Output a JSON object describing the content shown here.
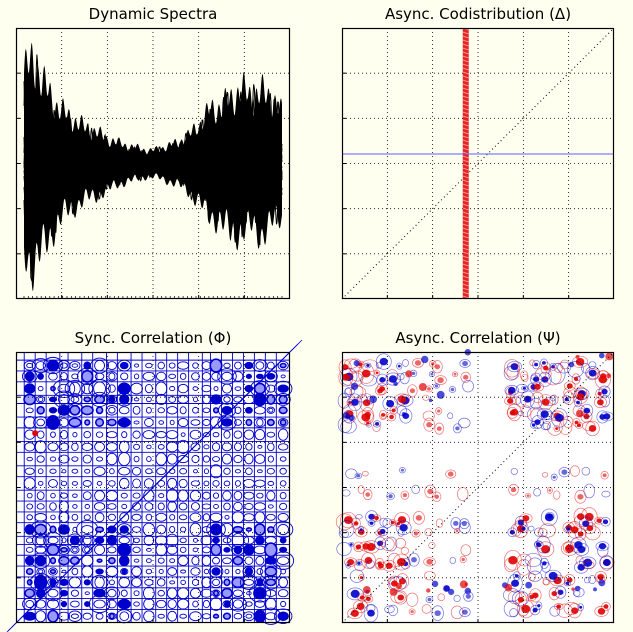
{
  "figure": {
    "background": "#fffff0"
  },
  "chart_data": [
    {
      "panel": "dynamic-spectra",
      "type": "line",
      "title": "Dynamic Spectra",
      "xlabel": "",
      "ylabel": "",
      "series_count": 14,
      "series_color": "#000000",
      "grid": true,
      "xlim": [
        0,
        1
      ],
      "ylim": [
        -1.6,
        1.6
      ],
      "envelope": {
        "x": [
          0.0,
          0.04,
          0.08,
          0.12,
          0.16,
          0.2,
          0.24,
          0.28,
          0.32,
          0.36,
          0.4,
          0.44,
          0.48,
          0.52,
          0.56,
          0.6,
          0.64,
          0.68,
          0.72,
          0.76,
          0.8,
          0.84,
          0.88,
          0.92,
          0.96,
          1.0
        ],
        "upper": [
          1.3,
          1.45,
          1.1,
          0.85,
          0.7,
          0.6,
          0.5,
          0.45,
          0.35,
          0.3,
          0.25,
          0.22,
          0.18,
          0.2,
          0.25,
          0.3,
          0.4,
          0.55,
          0.75,
          0.8,
          0.9,
          1.05,
          0.95,
          1.0,
          0.95,
          0.7
        ],
        "lower": [
          -1.2,
          -1.5,
          -1.15,
          -0.9,
          -0.7,
          -0.6,
          -0.5,
          -0.45,
          -0.38,
          -0.3,
          -0.25,
          -0.22,
          -0.18,
          -0.2,
          -0.25,
          -0.3,
          -0.4,
          -0.55,
          -0.75,
          -0.8,
          -1.0,
          -0.95,
          -0.9,
          -1.0,
          -0.85,
          -0.75
        ]
      }
    },
    {
      "panel": "async-codistribution",
      "type": "heatmap",
      "title": "Async. Codistribution (Δ)",
      "xlim": [
        0,
        1
      ],
      "ylim": [
        0,
        1
      ],
      "grid": true,
      "diagonal": true,
      "features": [
        {
          "kind": "vertical-band",
          "x": 0.455,
          "color": "#e00000"
        },
        {
          "kind": "horizontal-band",
          "y": 0.535,
          "color": "#6060ff"
        }
      ]
    },
    {
      "panel": "sync-correlation",
      "type": "heatmap",
      "title": "Sync. Correlation (Φ)",
      "xlim": [
        0,
        1
      ],
      "ylim": [
        0,
        1
      ],
      "contour_color": "#0000cc",
      "grid": true,
      "diagonal": true
    },
    {
      "panel": "async-correlation",
      "type": "heatmap",
      "title": "Async. Correlation (Ψ)",
      "xlim": [
        0,
        1
      ],
      "ylim": [
        0,
        1
      ],
      "positive_color": "#e00000",
      "negative_color": "#0000cc",
      "grid": true,
      "diagonal": true
    }
  ]
}
